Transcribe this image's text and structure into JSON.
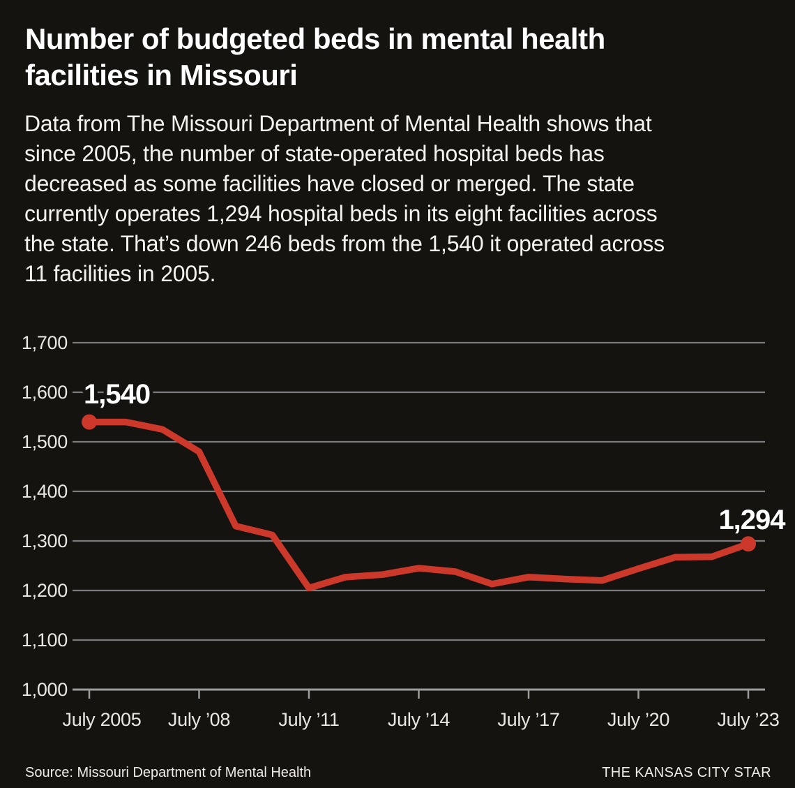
{
  "header": {
    "title_lines": [
      "Number of budgeted beds in mental health",
      "facilities in Missouri"
    ],
    "intro_lines": [
      "Data from The Missouri Department of Mental Health shows that",
      "since 2005, the number of state-operated hospital beds has",
      "decreased as some facilities have closed or merged. The state",
      "currently operates 1,294 hospital beds in its eight facilities across",
      "the state. That’s down 246 beds from the 1,540 it operated across",
      "11 facilities in 2005."
    ]
  },
  "chart_data": {
    "type": "line",
    "title": "Number of budgeted beds in mental health facilities in Missouri",
    "xlabel": "",
    "ylabel": "",
    "x": [
      2005,
      2006,
      2007,
      2008,
      2009,
      2010,
      2011,
      2012,
      2013,
      2014,
      2015,
      2016,
      2017,
      2018,
      2019,
      2020,
      2021,
      2022,
      2023
    ],
    "values": [
      1540,
      1540,
      1525,
      1480,
      1330,
      1312,
      1205,
      1227,
      1232,
      1245,
      1238,
      1213,
      1227,
      1223,
      1220,
      1244,
      1267,
      1268,
      1294
    ],
    "ylim": [
      1000,
      1700
    ],
    "grid": true,
    "legend": false,
    "y_tick_values": [
      1000,
      1100,
      1200,
      1300,
      1400,
      1500,
      1600,
      1700
    ],
    "y_tick_labels": [
      "1,000",
      "1,100",
      "1,200",
      "1,300",
      "1,400",
      "1,500",
      "1,600",
      "1,700"
    ],
    "x_tick_years": [
      2005,
      2008,
      2011,
      2014,
      2017,
      2020,
      2023
    ],
    "x_tick_labels": [
      "July 2005",
      "July ’08",
      "July ’11",
      "July ’14",
      "July ’17",
      "July ’20",
      "July ’23"
    ],
    "annotations": [
      {
        "text": "1,540",
        "year": 2005,
        "value": 1540
      },
      {
        "text": "1,294",
        "year": 2023,
        "value": 1294
      }
    ],
    "line_color": "#cc382a",
    "marker_color": "#cc382a",
    "grid_color": "#7b7b7b",
    "axis_color": "#9c9c9c",
    "background_color": "#151310"
  },
  "footer": {
    "source": "Source: Missouri Department of Mental Health",
    "brand": "THE KANSAS CITY STAR"
  }
}
